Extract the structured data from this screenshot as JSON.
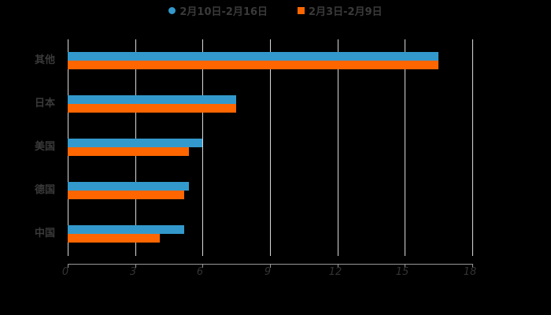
{
  "chart_data": {
    "type": "bar",
    "orientation": "horizontal",
    "title": "",
    "categories": [
      "其他",
      "日本",
      "美国",
      "德国",
      "中国"
    ],
    "series": [
      {
        "name": "2月10日-2月16日",
        "color": "#3399cc",
        "values": [
          16.5,
          7.5,
          6.0,
          5.4,
          5.2
        ]
      },
      {
        "name": "2月3日-2月9日",
        "color": "#ff6600",
        "values": [
          16.5,
          7.5,
          5.4,
          5.2,
          4.1
        ]
      }
    ],
    "xlabel": "",
    "ylabel": "",
    "xlim": [
      0,
      18
    ],
    "xticks": [
      "0",
      "3",
      "6",
      "9",
      "12",
      "15",
      "18"
    ],
    "grid": true,
    "legend_position": "top"
  },
  "legend": {
    "items": [
      {
        "label": "2月10日-2月16日",
        "color": "#3399cc",
        "shape": "circle"
      },
      {
        "label": "2月3日-2月9日",
        "color": "#ff6600",
        "shape": "square"
      }
    ]
  }
}
